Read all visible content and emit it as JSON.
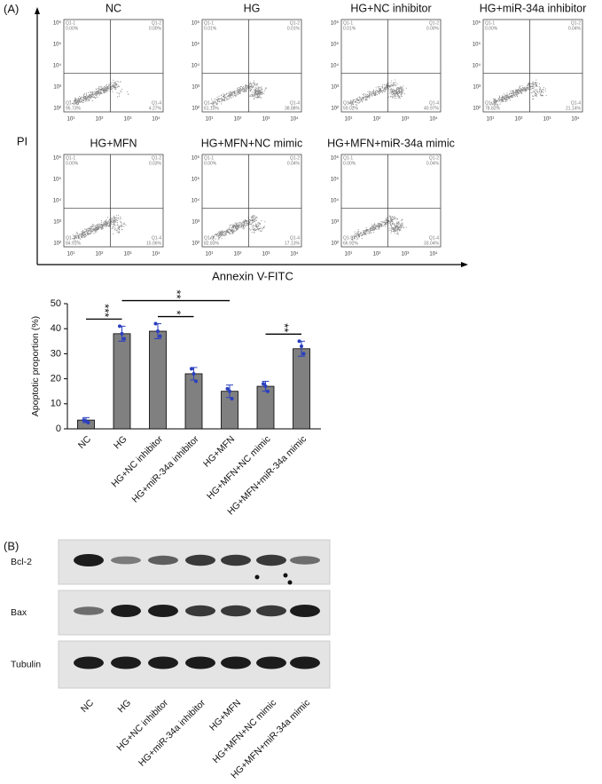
{
  "panel_a": {
    "label": "(A)",
    "y_axis_label": "PI",
    "x_axis_label": "Annexin V-FITC",
    "flow_axis": {
      "xticks": [
        "10¹",
        "10²",
        "10³",
        "10⁴"
      ],
      "yticks": [
        "10²",
        "10³",
        "10⁴",
        "10⁵",
        "10⁶"
      ]
    },
    "plots": [
      {
        "title": "NC",
        "quadrants": [
          {
            "name": "Q1-1",
            "value": "0.00%"
          },
          {
            "name": "Q1-2",
            "value": "0.00%"
          },
          {
            "name": "Q1-3",
            "value": "95.73%"
          },
          {
            "name": "Q1-4",
            "value": "4.27%"
          }
        ]
      },
      {
        "title": "HG",
        "quadrants": [
          {
            "name": "Q1-1",
            "value": "0.01%"
          },
          {
            "name": "Q1-2",
            "value": "0.01%"
          },
          {
            "name": "Q1-3",
            "value": "61.10%"
          },
          {
            "name": "Q1-4",
            "value": "38.88%"
          }
        ]
      },
      {
        "title": "HG+NC inhibitor",
        "quadrants": [
          {
            "name": "Q1-1",
            "value": "0.01%"
          },
          {
            "name": "Q1-2",
            "value": "0.00%"
          },
          {
            "name": "Q1-3",
            "value": "59.02%"
          },
          {
            "name": "Q1-4",
            "value": "40.97%"
          }
        ]
      },
      {
        "title": "HG+miR-34a inhibitor",
        "quadrants": [
          {
            "name": "Q1-1",
            "value": "0.00%"
          },
          {
            "name": "Q1-2",
            "value": "0.04%"
          },
          {
            "name": "Q1-3",
            "value": "78.82%"
          },
          {
            "name": "Q1-4",
            "value": "21.14%"
          }
        ]
      },
      {
        "title": "HG+MFN",
        "quadrants": [
          {
            "name": "Q1-1",
            "value": "0.00%"
          },
          {
            "name": "Q1-2",
            "value": "0.03%"
          },
          {
            "name": "Q1-3",
            "value": "84.91%"
          },
          {
            "name": "Q1-4",
            "value": "15.06%"
          }
        ]
      },
      {
        "title": "HG+MFN+NC mimic",
        "quadrants": [
          {
            "name": "Q1-1",
            "value": "0.00%"
          },
          {
            "name": "Q1-2",
            "value": "0.04%"
          },
          {
            "name": "Q1-3",
            "value": "82.83%"
          },
          {
            "name": "Q1-4",
            "value": "17.13%"
          }
        ]
      },
      {
        "title": "HG+MFN+miR-34a mimic",
        "quadrants": [
          {
            "name": "Q1-1",
            "value": "0.00%"
          },
          {
            "name": "Q1-2",
            "value": "0.04%"
          },
          {
            "name": "Q1-3",
            "value": "66.92%"
          },
          {
            "name": "Q1-4",
            "value": "33.04%"
          }
        ]
      }
    ]
  },
  "chart_data": {
    "type": "bar",
    "y_axis_label": "Apoptotic proportion (%)",
    "categories": [
      "NC",
      "HG",
      "HG+NC inhibitor",
      "HG+miR-34a inhibitor",
      "HG+MFN",
      "HG+MFN+NC mimic",
      "HG+MFN+miR-34a mimic"
    ],
    "values": [
      3.5,
      38,
      39,
      22,
      15,
      17,
      32
    ],
    "errors": [
      1,
      3,
      3,
      2.5,
      2.5,
      2,
      3
    ],
    "points": [
      [
        3.5,
        3,
        2.5
      ],
      [
        41,
        38,
        36
      ],
      [
        42,
        39,
        37
      ],
      [
        24,
        22,
        19
      ],
      [
        16,
        15,
        12
      ],
      [
        18,
        17,
        15
      ],
      [
        35,
        33,
        30
      ]
    ],
    "color": "#808080",
    "point_color": "#2a3fbf",
    "ylim": [
      0,
      50
    ],
    "yticks": [
      0,
      10,
      20,
      30,
      40,
      50
    ],
    "annotations": [
      {
        "label": "***",
        "between": [
          "NC",
          "HG"
        ]
      },
      {
        "label": "**",
        "between": [
          "HG",
          "HG+MFN"
        ]
      },
      {
        "label": "*",
        "between": [
          "HG+NC inhibitor",
          "HG+miR-34a inhibitor"
        ]
      },
      {
        "label": "**",
        "between": [
          "HG+MFN+NC mimic",
          "HG+MFN+miR-34a mimic"
        ]
      }
    ]
  },
  "panel_b": {
    "label": "(B)",
    "rows": [
      "Bcl-2",
      "Bax",
      "Tubulin"
    ],
    "lanes": [
      "NC",
      "HG",
      "HG+NC inhibitor",
      "HG+miR-34a inhibitor",
      "HG+MFN",
      "HG+MFN+NC mimic",
      "HG+MFN+miR-34a mimic"
    ]
  }
}
